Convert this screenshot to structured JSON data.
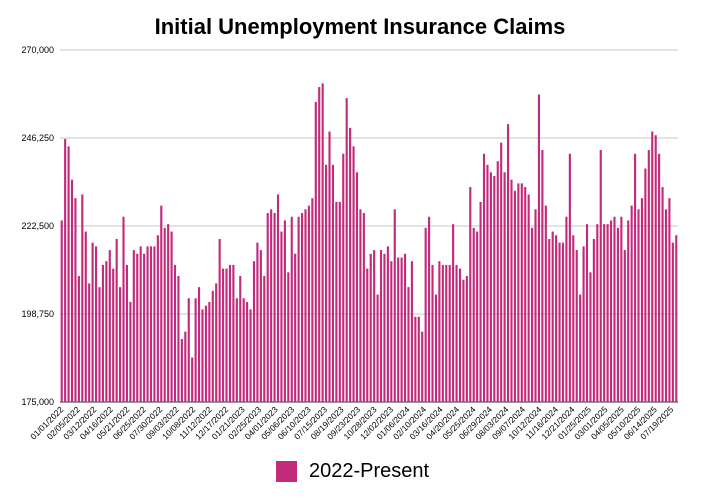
{
  "chart_data": {
    "type": "bar",
    "title": "Initial Unemployment Insurance Claims",
    "xlabel": "",
    "ylabel": "",
    "ylim": [
      175000,
      270000
    ],
    "yticks": [
      175000,
      198750,
      222500,
      246250,
      270000
    ],
    "ytick_labels": [
      "175,000",
      "198,750",
      "222,500",
      "246,250",
      "270,000"
    ],
    "grid": true,
    "legend_position": "bottom-center",
    "series": [
      {
        "name": "2022-Present",
        "color": "#c22a7b",
        "values": [
          224000,
          246000,
          244000,
          235000,
          230000,
          209000,
          231000,
          221000,
          207000,
          218000,
          217000,
          206000,
          212000,
          213000,
          216000,
          211000,
          219000,
          206000,
          225000,
          212000,
          202000,
          216000,
          215000,
          217000,
          215000,
          217000,
          217000,
          217000,
          220000,
          228000,
          222000,
          223000,
          221000,
          212000,
          209000,
          192000,
          194000,
          203000,
          187000,
          203000,
          206000,
          200000,
          201000,
          202000,
          205000,
          207000,
          219000,
          211000,
          211000,
          212000,
          212000,
          203000,
          209000,
          203000,
          202000,
          200000,
          213000,
          218000,
          216000,
          209000,
          226000,
          227000,
          226000,
          231000,
          221000,
          224000,
          210000,
          225000,
          215000,
          225000,
          226000,
          227000,
          228000,
          230000,
          256000,
          260000,
          261000,
          239000,
          248000,
          239000,
          229000,
          229000,
          242000,
          257000,
          249000,
          244000,
          237000,
          227000,
          226000,
          211000,
          215000,
          216000,
          204000,
          216000,
          215000,
          217000,
          213000,
          227000,
          214000,
          214000,
          215000,
          206000,
          213000,
          198000,
          198000,
          194000,
          222000,
          225000,
          212000,
          204000,
          213000,
          212000,
          212000,
          212000,
          223000,
          212000,
          211000,
          208000,
          209000,
          233000,
          222000,
          221000,
          229000,
          242000,
          239000,
          237000,
          236000,
          240000,
          245000,
          237000,
          250000,
          235000,
          232000,
          234000,
          234000,
          233000,
          231000,
          222000,
          227000,
          258000,
          243000,
          228000,
          219000,
          221000,
          220000,
          218000,
          218000,
          225000,
          242000,
          220000,
          216000,
          204000,
          217000,
          223000,
          210000,
          219000,
          223000,
          243000,
          223000,
          223000,
          224000,
          225000,
          222000,
          225000,
          216000,
          224000,
          228000,
          242000,
          227000,
          230000,
          238000,
          243000,
          248000,
          247000,
          242000,
          233000,
          227000,
          230000,
          218000,
          220000
        ]
      }
    ],
    "date_labels": [
      "01/01/2022",
      "02/05/2022",
      "03/12/2022",
      "04/16/2022",
      "05/21/2022",
      "06/25/2022",
      "07/30/2022",
      "09/03/2022",
      "10/08/2022",
      "11/12/2022",
      "12/17/2022",
      "01/21/2023",
      "02/25/2023",
      "04/01/2023",
      "05/06/2023",
      "06/10/2023",
      "07/15/2023",
      "08/19/2023",
      "09/23/2023",
      "10/28/2023",
      "12/02/2023",
      "01/06/2024",
      "02/10/2024",
      "03/16/2024",
      "04/20/2024",
      "05/25/2024",
      "06/29/2024",
      "08/03/2024",
      "09/07/2024",
      "10/12/2024",
      "11/16/2024",
      "12/21/2024",
      "01/25/2025",
      "03/01/2025",
      "04/05/2025",
      "05/10/2025",
      "06/14/2025",
      "07/19/2025"
    ]
  }
}
